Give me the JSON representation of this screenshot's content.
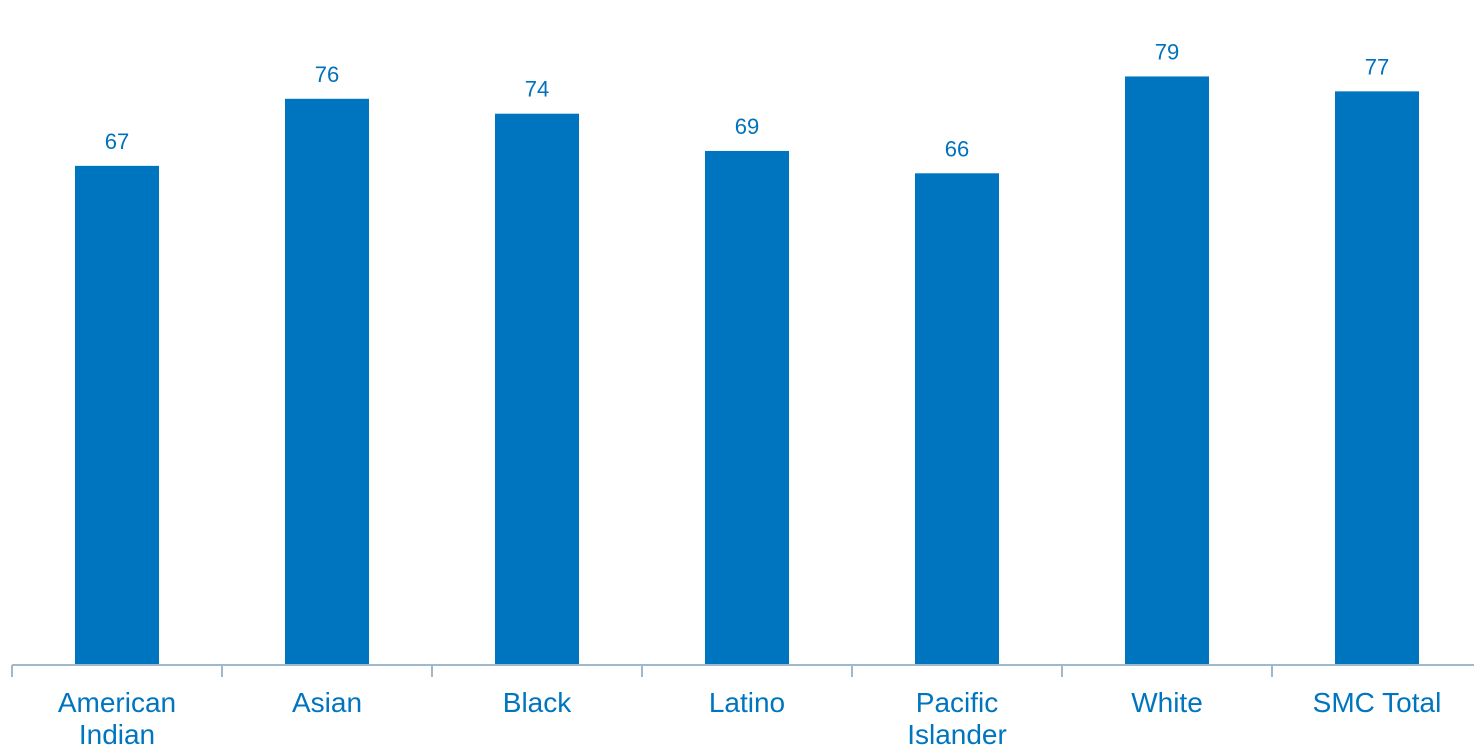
{
  "chart_data": {
    "type": "bar",
    "categories": [
      [
        "American",
        "Indian"
      ],
      [
        "Asian"
      ],
      [
        "Black"
      ],
      [
        "Latino"
      ],
      [
        "Pacific",
        "Islander"
      ],
      [
        "White"
      ],
      [
        "SMC Total"
      ]
    ],
    "values": [
      67,
      76,
      74,
      69,
      66,
      79,
      77
    ],
    "data_labels": [
      "67",
      "76",
      "74",
      "69",
      "66",
      "79",
      "77"
    ],
    "title": "",
    "xlabel": "",
    "ylabel": "",
    "ylim": [
      0,
      85
    ],
    "grid": false,
    "legend": "none",
    "colors": {
      "bar": "#0075BF",
      "data_label": "#0072BC",
      "category_label": "#0075BF",
      "axis": "#9FB8CC"
    }
  }
}
